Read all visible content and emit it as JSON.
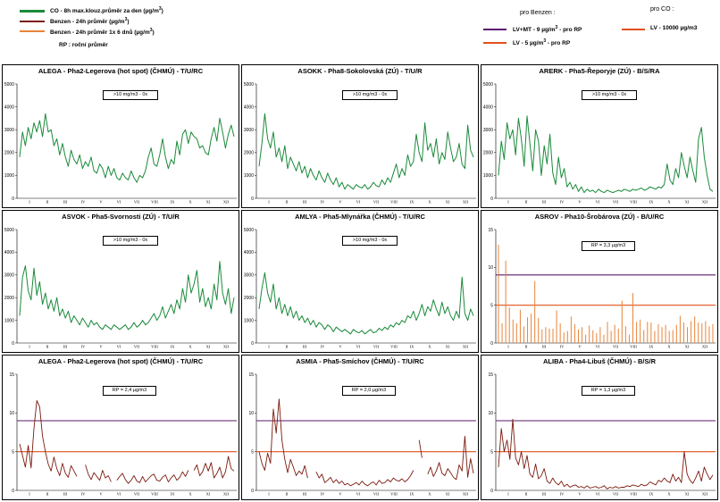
{
  "legend": {
    "co": "CO - 8h max.klouz.průměr za den (µg/m",
    "co_sup": "3",
    "co_end": ")",
    "benz24": "Benzen - 24h průměr (µg/m",
    "benz24_sup": "3",
    "benz24_end": ")",
    "benz6": "Benzen - 24h průměr 1x 6 dnů (µg/m",
    "benz6_sup": "3",
    "benz6_end": ")",
    "rp": "RP : roční průměr",
    "pro_benzen": "pro Benzen :",
    "lvmt": "LV+MT - 9 µg/m",
    "lvmt_sup": "3",
    "lvmt_end": " - pro RP",
    "lv5": "LV - 5 µg/m",
    "lv5_sup": "3",
    "lv5_end": " - pro RP",
    "pro_co": "pro CO :",
    "lvco": "LV     - 10000 µg/m3"
  },
  "colors": {
    "co": "#1a8a3a",
    "benz24": "#7a1a0e",
    "benz6": "#e8843a",
    "lvmt": "#5b1a6e",
    "lv5": "#e0501a"
  },
  "month_labels": [
    "I",
    "II",
    "III",
    "IV",
    "V",
    "VI",
    "VII",
    "VIII",
    "IX",
    "X",
    "XI",
    "XII"
  ],
  "chart_data": [
    {
      "type": "line",
      "title": "ALEGA - Pha2-Legerova (hot spot) (ČHMÚ) - T/U/RC",
      "series_kind": "co",
      "note": ">10 mg/m3 - 0x",
      "ylim": [
        0,
        5000
      ],
      "yticks": [
        0,
        1000,
        2000,
        3000,
        4000,
        5000
      ],
      "values": [
        1800,
        2900,
        2300,
        3100,
        2600,
        3300,
        2900,
        3400,
        2700,
        3700,
        2900,
        3000,
        2300,
        2600,
        1900,
        2400,
        1800,
        1400,
        2100,
        1700,
        1500,
        1900,
        1300,
        1600,
        1400,
        1800,
        1200,
        1100,
        1500,
        1300,
        900,
        1400,
        1000,
        1300,
        900,
        800,
        1100,
        900,
        800,
        1200,
        900,
        700,
        1000,
        900,
        1200,
        1800,
        2200,
        1500,
        1400,
        1900,
        2600,
        1800,
        1300,
        1700,
        1500,
        2500,
        1900,
        2800,
        3000,
        2400,
        2900,
        2700,
        2600,
        2200,
        2300,
        2000,
        1900,
        2600,
        3100,
        2500,
        3500,
        2900,
        2200,
        2800,
        3200,
        2700
      ]
    },
    {
      "type": "line",
      "title": "ASOKK - Pha8-Sokolovská (ZÚ) - T/U/R",
      "series_kind": "co",
      "note": ">10 mg/m3 - 0x",
      "ylim": [
        0,
        5000
      ],
      "yticks": [
        0,
        1000,
        2000,
        3000,
        4000,
        5000
      ],
      "values": [
        1400,
        2400,
        3700,
        2600,
        2200,
        2900,
        1800,
        2200,
        1600,
        2300,
        1300,
        1800,
        1500,
        1200,
        1600,
        1100,
        1400,
        900,
        1300,
        1000,
        800,
        1200,
        900,
        700,
        1100,
        800,
        600,
        900,
        500,
        700,
        400,
        600,
        500,
        400,
        600,
        500,
        450,
        600,
        400,
        500,
        700,
        550,
        500,
        800,
        600,
        900,
        700,
        1100,
        1500,
        900,
        1300,
        1000,
        1900,
        1400,
        1600,
        2800,
        2000,
        1600,
        3300,
        2100,
        2400,
        1800,
        2600,
        1500,
        2000,
        1700,
        2900,
        2200,
        1600,
        1800,
        2400,
        1500,
        1300,
        3200,
        2100,
        1800
      ]
    },
    {
      "type": "line",
      "title": "ARERK - Pha5-Řeporyje (ZÚ) - B/S/RA",
      "series_kind": "co",
      "note": ">10 mg/m3 - 0x",
      "ylim": [
        0,
        5000
      ],
      "yticks": [
        0,
        1000,
        2000,
        3000,
        4000,
        5000
      ],
      "values": [
        1000,
        2500,
        1700,
        3300,
        2600,
        3000,
        1900,
        3500,
        2600,
        1400,
        3600,
        2400,
        1200,
        3000,
        2500,
        1000,
        2300,
        1500,
        2800,
        1100,
        600,
        1800,
        900,
        1300,
        500,
        700,
        400,
        600,
        300,
        500,
        250,
        400,
        300,
        350,
        250,
        400,
        300,
        250,
        350,
        300,
        250,
        300,
        350,
        300,
        400,
        350,
        300,
        400,
        350,
        400,
        450,
        350,
        400,
        500,
        450,
        400,
        500,
        450,
        600,
        1500,
        800,
        600,
        1300,
        900,
        2000,
        1400,
        900,
        1800,
        1200,
        700,
        2600,
        3100,
        1800,
        1000,
        400,
        300
      ]
    },
    {
      "type": "line",
      "title": "ASVOK - Pha5-Svornosti (ZÚ) - T/U/R",
      "series_kind": "co",
      "note": ">10 mg/m3 - 0x",
      "ylim": [
        0,
        5000
      ],
      "yticks": [
        0,
        1000,
        2000,
        3000,
        4000,
        5000
      ],
      "values": [
        1200,
        2900,
        3400,
        2300,
        1900,
        3300,
        2100,
        2700,
        1700,
        2200,
        1500,
        1900,
        1400,
        2000,
        1200,
        1500,
        1100,
        1400,
        900,
        1200,
        1000,
        800,
        1100,
        900,
        700,
        1000,
        800,
        900,
        700,
        600,
        800,
        700,
        600,
        800,
        700,
        600,
        700,
        800,
        600,
        700,
        900,
        700,
        800,
        1000,
        800,
        900,
        1100,
        1300,
        1000,
        1200,
        1600,
        1100,
        1400,
        1700,
        1300,
        1900,
        1500,
        2400,
        1800,
        3000,
        2200,
        2600,
        3200,
        1800,
        2400,
        1600,
        2000,
        1500,
        2600,
        1900,
        3600,
        2200,
        1700,
        2400,
        1300,
        2000
      ]
    },
    {
      "type": "line",
      "title": "AMLYA - Pha5-Mlynářka (ČHMÚ) - T/U/RC",
      "series_kind": "co",
      "note": ">10 mg/m3 - 0x",
      "ylim": [
        0,
        5000
      ],
      "yticks": [
        0,
        1000,
        2000,
        3000,
        4000,
        5000
      ],
      "values": [
        1500,
        2400,
        3100,
        2200,
        1800,
        2600,
        1500,
        2000,
        1300,
        1700,
        1200,
        1600,
        1100,
        1400,
        1000,
        1200,
        900,
        1100,
        800,
        1000,
        700,
        900,
        800,
        600,
        800,
        700,
        500,
        700,
        600,
        500,
        600,
        500,
        400,
        600,
        500,
        450,
        550,
        400,
        500,
        600,
        450,
        500,
        650,
        550,
        700,
        600,
        800,
        700,
        900,
        800,
        1000,
        900,
        1200,
        1100,
        1400,
        1000,
        1300,
        1700,
        1200,
        1600,
        1400,
        1900,
        1500,
        1200,
        1800,
        1300,
        1600,
        1200,
        1000,
        1400,
        1100,
        2900,
        1300,
        1000,
        1500,
        1200
      ]
    },
    {
      "type": "bar",
      "title": "ASROV - Pha10-Šrobárova (ZÚ) - B/U/RC",
      "series_kind": "benz6",
      "note": "RP = 3,3 µg/m3",
      "ylim": [
        0,
        15
      ],
      "yticks": [
        0,
        5,
        10,
        15
      ],
      "lines": [
        "lvmt",
        "lv5"
      ],
      "values": [
        13,
        2.6,
        10.9,
        4.7,
        3.1,
        2.6,
        4.4,
        2.2,
        3.4,
        3.9,
        8.2,
        3.3,
        1.8,
        2.1,
        1.9,
        1.9,
        4.3,
        2.6,
        1.4,
        1.6,
        3.5,
        2.5,
        1.8,
        2.1,
        1.1,
        2.3,
        1.7,
        1.3,
        2.1,
        1.1,
        2.8,
        1.6,
        2.4,
        1.9,
        5.6,
        2.2,
        1.1,
        6.6,
        2.8,
        3.1,
        1.7,
        2.8,
        2.7,
        1.6,
        2.5,
        2.1,
        2.4,
        1.6,
        1.7,
        2.4,
        3.6,
        2.7,
        2.1,
        2.9,
        3.5,
        2.7,
        2.6,
        2.9,
        2.2,
        2.5
      ]
    },
    {
      "type": "line",
      "title": "ALEGA - Pha2-Legerova (hot spot) (ČHMÚ) - T/U/RC",
      "series_kind": "benz24",
      "note": "RP = 2,4 µg/m3",
      "ylim": [
        0,
        15
      ],
      "yticks": [
        0,
        5,
        10,
        15
      ],
      "lines": [
        "lvmt",
        "lv5"
      ],
      "values": [
        6,
        4.5,
        3,
        5.8,
        2.9,
        8,
        11.6,
        10.8,
        7,
        5,
        3.4,
        2.5,
        4.3,
        2.8,
        1.9,
        3.5,
        2.2,
        1.7,
        3.2,
        2.5,
        1.8,
        null,
        null,
        3.3,
        2.1,
        1.4,
        2.3,
        1.8,
        1.3,
        2.6,
        1.6,
        1.9,
        1.1,
        null,
        1.3,
        1.8,
        2.2,
        1.4,
        0.9,
        1.3,
        1.9,
        1.2,
        1,
        1.8,
        1.1,
        1.5,
        1.9,
        2.1,
        1.3,
        1.2,
        1.7,
        2,
        1.1,
        1.6,
        2,
        1.3,
        1.7,
        2.4,
        1.8,
        2.6,
        null,
        2.6,
        3.3,
        1.9,
        2.4,
        3.5,
        2.5,
        3.6,
        1.6,
        2.2,
        3,
        1.6,
        2.4,
        4.4,
        2.8,
        2.5
      ]
    },
    {
      "type": "line",
      "title": "ASMIA - Pha5-Smíchov (ČHMÚ) - T/U/RC",
      "series_kind": "benz24",
      "note": "RP = 2,0 µg/m3",
      "ylim": [
        0,
        15
      ],
      "yticks": [
        0,
        5,
        10,
        15
      ],
      "lines": [
        "lvmt",
        "lv5"
      ],
      "values": [
        5,
        3.5,
        2.6,
        4.8,
        3.5,
        10.5,
        7.4,
        11.8,
        6.5,
        4,
        2.3,
        4,
        3,
        1.9,
        2.5,
        2.1,
        3.2,
        1.6,
        null,
        null,
        2.4,
        1.6,
        2.1,
        1,
        1.3,
        1.7,
        1,
        1.4,
        0.9,
        1.2,
        0.7,
        0.9,
        0.6,
        0.8,
        1,
        0.7,
        1.2,
        0.8,
        0.6,
        0.9,
        1.1,
        0.7,
        1.3,
        0.9,
        1,
        1.4,
        1.1,
        1.6,
        1.3,
        1.2,
        1.5,
        1.1,
        1.4,
        1.9,
        2.6,
        null,
        6.5,
        4.2,
        null,
        2.1,
        3,
        1.8,
        2.5,
        3.6,
        2.2,
        1.9,
        2.8,
        2.3,
        1.7,
        1.4,
        3.3,
        2.5,
        7,
        1.7,
        4.1,
        2.2
      ]
    },
    {
      "type": "line",
      "title": "ALIBA - Pha4-Libuš (ČHMÚ) - B/S/R",
      "series_kind": "benz24",
      "note": "RP = 1,3 µg/m3",
      "ylim": [
        0,
        15
      ],
      "yticks": [
        0,
        5,
        10,
        15
      ],
      "lines": [
        "lvmt",
        "lv5"
      ],
      "values": [
        3,
        8,
        5,
        6.5,
        4,
        9.2,
        4.2,
        3.3,
        5,
        2.8,
        4.5,
        2.1,
        1.7,
        3.4,
        1.5,
        1.9,
        2.8,
        1.2,
        0.9,
        1.6,
        1,
        0.7,
        1.2,
        0.5,
        0.8,
        0.4,
        0.6,
        0.7,
        0.4,
        0.5,
        0.3,
        0.6,
        0.3,
        0.4,
        0.5,
        0.3,
        0.4,
        0.6,
        0.2,
        0.4,
        0.3,
        0.5,
        0.3,
        0.4,
        0.4,
        0.6,
        0.5,
        0.7,
        0.6,
        0.5,
        0.8,
        0.6,
        0.7,
        1.1,
        0.9,
        0.7,
        1.3,
        1.1,
        1.6,
        1.2,
        1,
        2.1,
        1.2,
        1.7,
        1,
        5,
        2.1,
        1.3,
        0.9,
        1.6,
        2.5,
        1.2,
        3,
        2.1,
        1.4,
        2
      ]
    }
  ]
}
